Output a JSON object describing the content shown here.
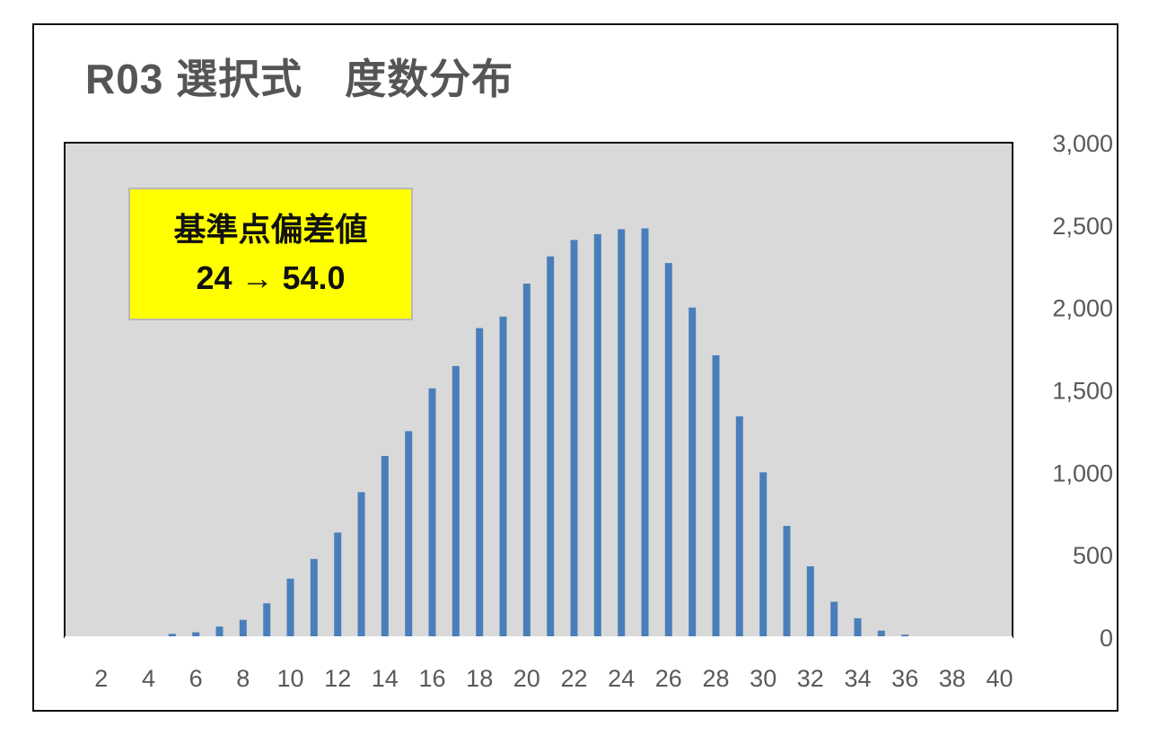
{
  "chart_data": {
    "type": "bar",
    "title": "R03 選択式　度数分布",
    "x": [
      1,
      2,
      3,
      4,
      5,
      6,
      7,
      8,
      9,
      10,
      11,
      12,
      13,
      14,
      15,
      16,
      17,
      18,
      19,
      20,
      21,
      22,
      23,
      24,
      25,
      26,
      27,
      28,
      29,
      30,
      31,
      32,
      33,
      34,
      35,
      36,
      37,
      38,
      39,
      40
    ],
    "values": [
      0,
      0,
      0,
      2,
      20,
      30,
      65,
      105,
      205,
      355,
      475,
      635,
      880,
      1100,
      1250,
      1510,
      1645,
      1875,
      1945,
      2145,
      2310,
      2410,
      2445,
      2475,
      2480,
      2270,
      2000,
      1710,
      1340,
      1000,
      675,
      430,
      215,
      115,
      40,
      15,
      5,
      0,
      0,
      0
    ],
    "xticks": [
      "2",
      "4",
      "6",
      "8",
      "10",
      "12",
      "14",
      "16",
      "18",
      "20",
      "22",
      "24",
      "26",
      "28",
      "30",
      "32",
      "34",
      "36",
      "38",
      "40"
    ],
    "yticks": [
      "0",
      "500",
      "1,000",
      "1,500",
      "2,000",
      "2,500",
      "3,000"
    ],
    "ylim": [
      0,
      3000
    ],
    "y_axis_side": "right",
    "bar_color": "#4a7ebb",
    "plot_background": "#d9d9d9",
    "annotation": {
      "line1": "基準点偏差値",
      "line2": "24 → 54.0",
      "background": "#ffff00"
    }
  }
}
